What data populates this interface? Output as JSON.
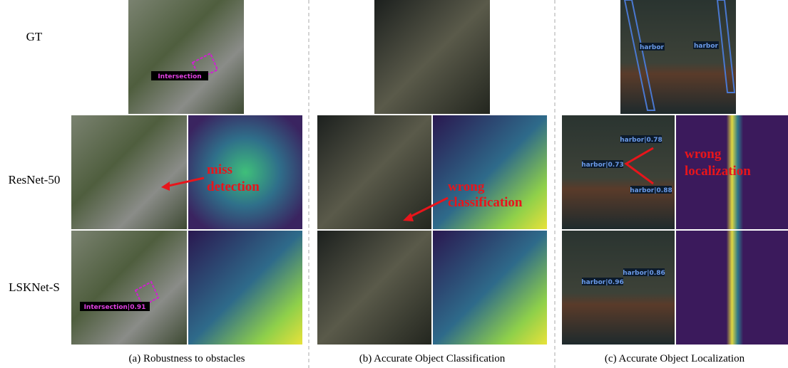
{
  "figure": {
    "row_labels": [
      "GT",
      "ResNet-50",
      "LSKNet-S"
    ],
    "captions": [
      "(a) Robustness to obstacles",
      "(b) Accurate Object Classification",
      "(c) Accurate Object Localization"
    ],
    "annotations": {
      "a": [
        "miss",
        "detection"
      ],
      "b": [
        "wrong",
        "classification"
      ],
      "c": [
        "wrong",
        "localization"
      ]
    },
    "box_labels": {
      "a_gt": "Intersection",
      "a_lsk": "Intersection|0.91",
      "c_gt": [
        "harbor",
        "harbor"
      ],
      "c_res": [
        "harbor|0.78",
        "harbor|0.73",
        "harbor|0.88"
      ],
      "c_lsk": [
        "harbor|0.96",
        "harbor|0.86"
      ]
    }
  }
}
